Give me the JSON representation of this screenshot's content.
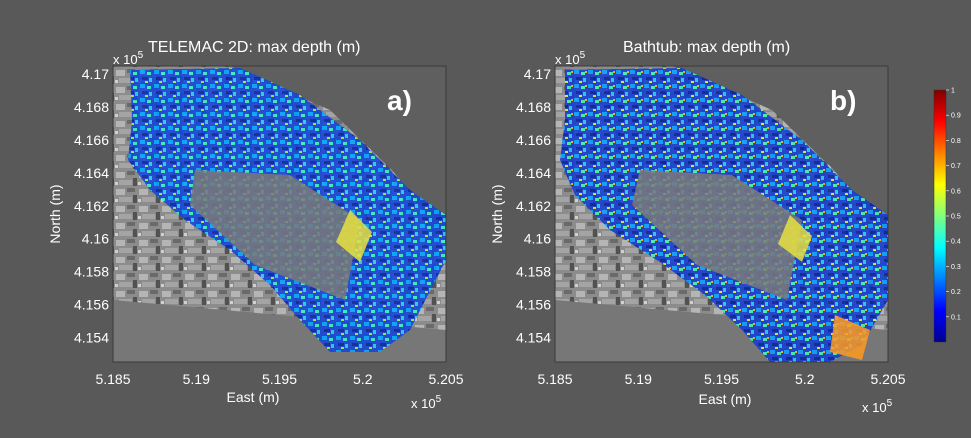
{
  "chart_data": [
    {
      "type": "heatmap",
      "panel_label": "a)",
      "title": "TELEMAC 2D: max depth (m)",
      "xlabel": "East (m)",
      "ylabel": "North (m)",
      "xlim": [
        5.185,
        5.205
      ],
      "ylim": [
        4.1525,
        4.1705
      ],
      "xticks": [
        "5.185",
        "5.19",
        "5.195",
        "5.2",
        "5.205"
      ],
      "yticks": [
        "4.17",
        "4.168",
        "4.166",
        "4.164",
        "4.162",
        "4.16",
        "4.158",
        "4.156",
        "4.154"
      ],
      "x_multiplier": "x 10",
      "x_exponent": "5",
      "y_multiplier": "x 10",
      "y_exponent": "5",
      "background": "aerial photograph (grayscale)"
    },
    {
      "type": "heatmap",
      "panel_label": "b)",
      "title": "Bathtub: max depth (m)",
      "xlabel": "East (m)",
      "ylabel": "North (m)",
      "xlim": [
        5.185,
        5.205
      ],
      "ylim": [
        4.1525,
        4.1705
      ],
      "xticks": [
        "5.185",
        "5.19",
        "5.195",
        "5.2",
        "5.205"
      ],
      "yticks": [
        "4.17",
        "4.168",
        "4.166",
        "4.164",
        "4.162",
        "4.16",
        "4.158",
        "4.156",
        "4.154"
      ],
      "x_multiplier": "x 10",
      "x_exponent": "5",
      "y_multiplier": "x 10",
      "y_exponent": "5",
      "background": "aerial photograph (grayscale)",
      "colorbar": {
        "range": [
          0,
          1
        ],
        "ticks": [
          "1",
          "0.9",
          "0.8",
          "0.7",
          "0.6",
          "0.5",
          "0.4",
          "0.3",
          "0.2",
          "0.1"
        ],
        "colormap": "jet"
      }
    }
  ]
}
